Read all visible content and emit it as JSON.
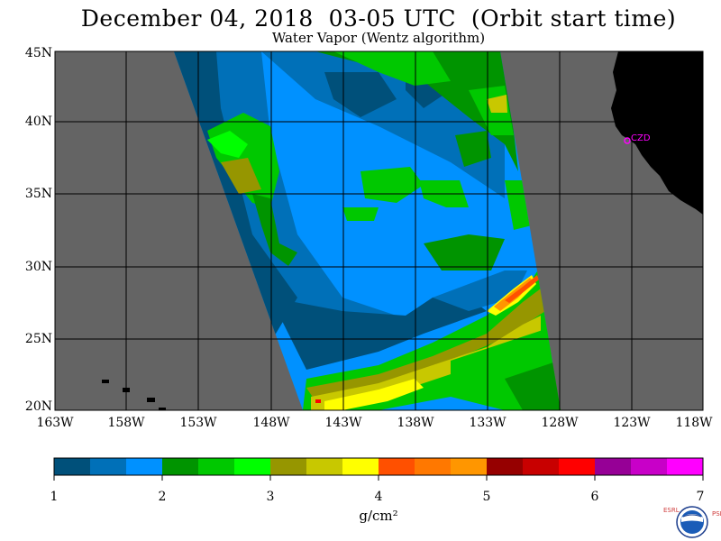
{
  "header": {
    "title": "December 04, 2018  03-05 UTC  (Orbit start time)",
    "subtitle": "Water Vapor (Wentz algorithm)"
  },
  "map": {
    "lat_labels": [
      "45N",
      "40N",
      "35N",
      "30N",
      "25N",
      "20N"
    ],
    "lon_labels": [
      "163W",
      "158W",
      "153W",
      "148W",
      "143W",
      "138W",
      "133W",
      "128W",
      "123W",
      "118W"
    ],
    "station_label": "CZD",
    "colors": {
      "no_data": "#646464",
      "land": "#000000",
      "grid": "#000000",
      "station": "#ff00ff"
    }
  },
  "colorbar": {
    "tick_labels": [
      "1",
      "2",
      "3",
      "4",
      "5",
      "6",
      "7"
    ],
    "unit_label": "g/cm²",
    "colors": [
      "#00507a",
      "#0070b8",
      "#0091ff",
      "#009400",
      "#00c800",
      "#00ff00",
      "#969600",
      "#c8c800",
      "#ffff00",
      "#ff5000",
      "#ff7800",
      "#ff9600",
      "#960000",
      "#c80000",
      "#ff0000",
      "#960096",
      "#c800c8",
      "#ff00ff"
    ]
  },
  "logo": {
    "left_text": "ESRL",
    "right_text": "PSD",
    "name": "noaa-logo"
  }
}
